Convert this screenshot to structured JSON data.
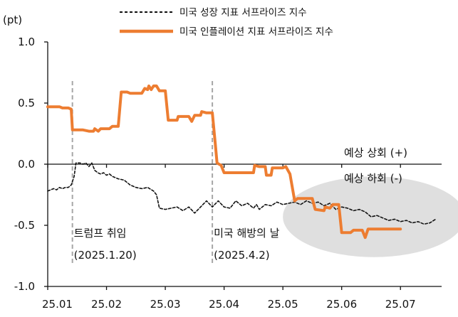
{
  "chart_data": {
    "type": "line",
    "ylabel": "(pt)",
    "ylim": [
      -1.0,
      1.0
    ],
    "yticks": [
      1.0,
      0.5,
      0.0,
      -0.5,
      -1.0
    ],
    "ytick_labels": [
      "1.0",
      "0.5",
      "0.0",
      "-0.5",
      "-1.0"
    ],
    "xlim": [
      0,
      6.7
    ],
    "xticks": [
      0,
      1,
      2,
      3,
      4,
      5,
      6
    ],
    "xtick_labels": [
      "25.01",
      "25.02",
      "25.03",
      "25.04",
      "25.05",
      "25.06",
      "25.07"
    ],
    "legend_position": "top",
    "series": [
      {
        "name": "미국 성장 지표 서프라이즈 지수",
        "style": "dashed",
        "color": "#111111",
        "points": [
          [
            0.0,
            -0.22
          ],
          [
            0.05,
            -0.21
          ],
          [
            0.1,
            -0.2
          ],
          [
            0.15,
            -0.21
          ],
          [
            0.2,
            -0.19
          ],
          [
            0.25,
            -0.2
          ],
          [
            0.3,
            -0.19
          ],
          [
            0.35,
            -0.19
          ],
          [
            0.4,
            -0.17
          ],
          [
            0.45,
            -0.1
          ],
          [
            0.48,
            0.01
          ],
          [
            0.55,
            0.01
          ],
          [
            0.6,
            0.0
          ],
          [
            0.65,
            0.01
          ],
          [
            0.7,
            -0.02
          ],
          [
            0.75,
            0.01
          ],
          [
            0.8,
            -0.05
          ],
          [
            0.85,
            -0.07
          ],
          [
            0.9,
            -0.08
          ],
          [
            0.95,
            -0.07
          ],
          [
            1.0,
            -0.09
          ],
          [
            1.05,
            -0.08
          ],
          [
            1.1,
            -0.1
          ],
          [
            1.2,
            -0.12
          ],
          [
            1.3,
            -0.13
          ],
          [
            1.4,
            -0.17
          ],
          [
            1.5,
            -0.19
          ],
          [
            1.6,
            -0.2
          ],
          [
            1.7,
            -0.19
          ],
          [
            1.8,
            -0.22
          ],
          [
            1.85,
            -0.25
          ],
          [
            1.9,
            -0.36
          ],
          [
            2.0,
            -0.37
          ],
          [
            2.1,
            -0.36
          ],
          [
            2.2,
            -0.35
          ],
          [
            2.3,
            -0.38
          ],
          [
            2.4,
            -0.35
          ],
          [
            2.5,
            -0.4
          ],
          [
            2.6,
            -0.35
          ],
          [
            2.7,
            -0.3
          ],
          [
            2.8,
            -0.35
          ],
          [
            2.9,
            -0.3
          ],
          [
            3.0,
            -0.35
          ],
          [
            3.1,
            -0.36
          ],
          [
            3.2,
            -0.3
          ],
          [
            3.3,
            -0.34
          ],
          [
            3.4,
            -0.32
          ],
          [
            3.5,
            -0.36
          ],
          [
            3.55,
            -0.33
          ],
          [
            3.6,
            -0.37
          ],
          [
            3.7,
            -0.33
          ],
          [
            3.8,
            -0.34
          ],
          [
            3.9,
            -0.31
          ],
          [
            4.0,
            -0.33
          ],
          [
            4.1,
            -0.32
          ],
          [
            4.2,
            -0.31
          ],
          [
            4.3,
            -0.33
          ],
          [
            4.4,
            -0.3
          ],
          [
            4.5,
            -0.32
          ],
          [
            4.6,
            -0.31
          ],
          [
            4.7,
            -0.34
          ],
          [
            4.8,
            -0.32
          ],
          [
            4.9,
            -0.37
          ],
          [
            5.0,
            -0.35
          ],
          [
            5.1,
            -0.36
          ],
          [
            5.2,
            -0.38
          ],
          [
            5.3,
            -0.37
          ],
          [
            5.4,
            -0.39
          ],
          [
            5.5,
            -0.43
          ],
          [
            5.6,
            -0.42
          ],
          [
            5.7,
            -0.44
          ],
          [
            5.8,
            -0.46
          ],
          [
            5.9,
            -0.45
          ],
          [
            6.0,
            -0.47
          ],
          [
            6.1,
            -0.46
          ],
          [
            6.2,
            -0.48
          ],
          [
            6.3,
            -0.47
          ],
          [
            6.4,
            -0.49
          ],
          [
            6.5,
            -0.48
          ],
          [
            6.6,
            -0.45
          ]
        ]
      },
      {
        "name": "미국 인플레이션 지표 서프라이즈 지수",
        "style": "solid",
        "color": "#ED7D31",
        "points": [
          [
            0.0,
            0.47
          ],
          [
            0.2,
            0.47
          ],
          [
            0.25,
            0.46
          ],
          [
            0.35,
            0.46
          ],
          [
            0.4,
            0.45
          ],
          [
            0.42,
            0.28
          ],
          [
            0.6,
            0.28
          ],
          [
            0.7,
            0.27
          ],
          [
            0.78,
            0.27
          ],
          [
            0.8,
            0.29
          ],
          [
            0.86,
            0.27
          ],
          [
            0.9,
            0.29
          ],
          [
            1.05,
            0.29
          ],
          [
            1.1,
            0.31
          ],
          [
            1.2,
            0.31
          ],
          [
            1.25,
            0.59
          ],
          [
            1.35,
            0.59
          ],
          [
            1.4,
            0.58
          ],
          [
            1.6,
            0.58
          ],
          [
            1.65,
            0.62
          ],
          [
            1.7,
            0.61
          ],
          [
            1.72,
            0.64
          ],
          [
            1.76,
            0.61
          ],
          [
            1.8,
            0.64
          ],
          [
            1.85,
            0.64
          ],
          [
            1.9,
            0.6
          ],
          [
            2.0,
            0.6
          ],
          [
            2.05,
            0.36
          ],
          [
            2.2,
            0.36
          ],
          [
            2.22,
            0.39
          ],
          [
            2.4,
            0.39
          ],
          [
            2.45,
            0.35
          ],
          [
            2.5,
            0.4
          ],
          [
            2.6,
            0.4
          ],
          [
            2.62,
            0.43
          ],
          [
            2.7,
            0.42
          ],
          [
            2.8,
            0.42
          ],
          [
            2.85,
            0.17
          ],
          [
            2.88,
            0.01
          ],
          [
            2.95,
            -0.01
          ],
          [
            3.0,
            -0.07
          ],
          [
            3.2,
            -0.07
          ],
          [
            3.4,
            -0.07
          ],
          [
            3.5,
            -0.07
          ],
          [
            3.52,
            -0.01
          ],
          [
            3.6,
            -0.02
          ],
          [
            3.7,
            -0.02
          ],
          [
            3.72,
            -0.09
          ],
          [
            3.8,
            -0.09
          ],
          [
            3.82,
            -0.03
          ],
          [
            4.0,
            -0.03
          ],
          [
            4.05,
            -0.02
          ],
          [
            4.12,
            -0.08
          ],
          [
            4.2,
            -0.3
          ],
          [
            4.25,
            -0.28
          ],
          [
            4.5,
            -0.28
          ],
          [
            4.55,
            -0.37
          ],
          [
            4.7,
            -0.38
          ],
          [
            4.72,
            -0.35
          ],
          [
            4.8,
            -0.36
          ],
          [
            4.85,
            -0.33
          ],
          [
            4.95,
            -0.33
          ],
          [
            5.0,
            -0.56
          ],
          [
            5.15,
            -0.56
          ],
          [
            5.2,
            -0.54
          ],
          [
            5.35,
            -0.54
          ],
          [
            5.4,
            -0.6
          ],
          [
            5.45,
            -0.53
          ],
          [
            5.9,
            -0.53
          ],
          [
            6.0,
            -0.53
          ]
        ]
      }
    ],
    "vlines": [
      {
        "x": 0.42,
        "label": "트럼프 취임",
        "sublabel": "(2025.1.20)"
      },
      {
        "x": 2.8,
        "label": "미국 해방의 날",
        "sublabel": "(2025.4.2)"
      }
    ],
    "region_labels": {
      "upper": "예상 상회 (+)",
      "lower": "예상 하회 (-)"
    },
    "highlight": {
      "x_center": 5.55,
      "y_center": -0.43,
      "x_radius": 1.55,
      "y_radius": 0.33,
      "color": "#D9D9D9"
    }
  }
}
